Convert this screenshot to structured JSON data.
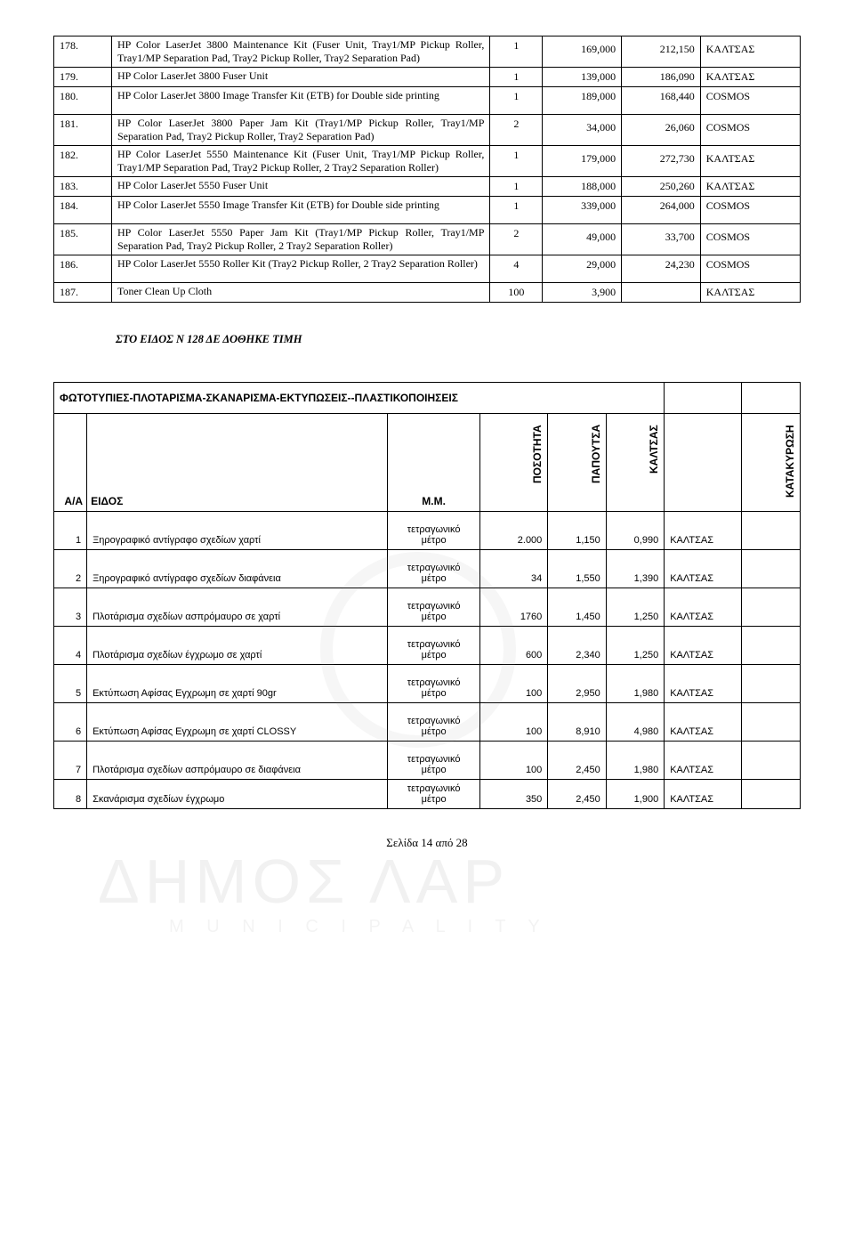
{
  "table1": {
    "rows": [
      {
        "n": "178.",
        "desc": "HP Color LaserJet 3800 Maintenance Kit (Fuser Unit, Tray1/MP Pickup Roller, Tray1/MP Separation Pad, Tray2 Pickup Roller, Tray2 Separation Pad)",
        "qty": "1",
        "v1": "169,000",
        "v2": "212,150",
        "who": "ΚΑΛΤΣΑΣ"
      },
      {
        "n": "179.",
        "desc": "HP Color LaserJet 3800 Fuser Unit",
        "qty": "1",
        "v1": "139,000",
        "v2": "186,090",
        "who": "ΚΑΛΤΣΑΣ"
      },
      {
        "n": "180.",
        "desc": "HP Color LaserJet 3800 Image Transfer Kit (ETB) for Double side printing",
        "qty": "1",
        "v1": "189,000",
        "v2": "168,440",
        "who": "COSMOS"
      },
      {
        "n": "181.",
        "desc": "HP Color LaserJet 3800 Paper Jam Kit (Tray1/MP Pickup Roller, Tray1/MP Separation Pad, Tray2 Pickup Roller, Tray2 Separation Pad)",
        "qty": "2",
        "v1": "34,000",
        "v2": "26,060",
        "who": "COSMOS"
      },
      {
        "n": "182.",
        "desc": "HP Color LaserJet 5550 Maintenance Kit (Fuser Unit, Tray1/MP Pickup Roller, Tray1/MP Separation Pad, Tray2 Pickup Roller, 2 Tray2 Separation Roller)",
        "qty": "1",
        "v1": "179,000",
        "v2": "272,730",
        "who": "ΚΑΛΤΣΑΣ"
      },
      {
        "n": "183.",
        "desc": "HP Color LaserJet 5550 Fuser Unit",
        "qty": "1",
        "v1": "188,000",
        "v2": "250,260",
        "who": "ΚΑΛΤΣΑΣ"
      },
      {
        "n": "184.",
        "desc": "HP Color LaserJet 5550 Image Transfer Kit (ETB) for Double side printing",
        "qty": "1",
        "v1": "339,000",
        "v2": "264,000",
        "who": "COSMOS"
      },
      {
        "n": "185.",
        "desc": "HP Color LaserJet 5550 Paper Jam Kit (Tray1/MP Pickup Roller, Tray1/MP Separation Pad, Tray2 Pickup Roller, 2 Tray2 Separation Roller)",
        "qty": "2",
        "v1": "49,000",
        "v2": "33,700",
        "who": "COSMOS"
      },
      {
        "n": "186.",
        "desc": "HP Color LaserJet 5550 Roller Kit (Tray2 Pickup Roller, 2 Tray2 Separation Roller)",
        "qty": "4",
        "v1": "29,000",
        "v2": "24,230",
        "who": "COSMOS"
      },
      {
        "n": "187.",
        "desc": "Toner Clean Up Cloth",
        "qty": "100",
        "v1": "3,900",
        "v2": "",
        "who": "ΚΑΛΤΣΑΣ"
      }
    ]
  },
  "note_text": "ΣΤΟ ΕΙΔΟΣ Ν 128 ΔΕ ΔΟΘΗΚΕ ΤΙΜΗ",
  "table2": {
    "title": "ΦΩΤΟΤΥΠΙΕΣ-ΠΛΟΤΑΡΙΣΜΑ-ΣΚΑΝΑΡΙΣΜΑ-ΕΚΤΥΠΩΣΕΙΣ--ΠΛΑΣΤΙΚΟΠΟΙΗΣΕΙΣ",
    "headers": {
      "aa": "Α/Α",
      "eidos": "ΕΙΔΟΣ",
      "mm": "Μ.Μ.",
      "pos": "ΠΟΣΟΤΗΤΑ",
      "pap": "ΠΑΠΟΥΤΣΑ",
      "kal": "ΚΑΛΤΣΑΣ",
      "kat": "ΚΑΤΑΚΥΡΩΣΗ"
    },
    "unit": "τετραγωνικό μέτρο",
    "rows": [
      {
        "n": "1",
        "d": "Ξηρογραφικό αντίγραφο σχεδίων χαρτί",
        "q": "2.000",
        "p1": "1,150",
        "p2": "0,990",
        "w": "ΚΑΛΤΣΑΣ"
      },
      {
        "n": "2",
        "d": "Ξηρογραφικό αντίγραφο σχεδίων διαφάνεια",
        "q": "34",
        "p1": "1,550",
        "p2": "1,390",
        "w": "ΚΑΛΤΣΑΣ"
      },
      {
        "n": "3",
        "d": "Πλοτάρισμα σχεδίων ασπρόμαυρο σε χαρτί",
        "q": "1760",
        "p1": "1,450",
        "p2": "1,250",
        "w": "ΚΑΛΤΣΑΣ"
      },
      {
        "n": "4",
        "d": "Πλοτάρισμα σχεδίων έγχρωμο σε χαρτί",
        "q": "600",
        "p1": "2,340",
        "p2": "1,250",
        "w": "ΚΑΛΤΣΑΣ"
      },
      {
        "n": "5",
        "d": "Εκτύπωση Αφίσας Εγχρωμη σε χαρτί 90gr",
        "q": "100",
        "p1": "2,950",
        "p2": "1,980",
        "w": "ΚΑΛΤΣΑΣ"
      },
      {
        "n": "6",
        "d": "Εκτύπωση Αφίσας Εγχρωμη σε χαρτί CLOSSY",
        "q": "100",
        "p1": "8,910",
        "p2": "4,980",
        "w": "ΚΑΛΤΣΑΣ"
      },
      {
        "n": "7",
        "d": "Πλοτάρισμα σχεδίων ασπρόμαυρο σε διαφάνεια",
        "q": "100",
        "p1": "2,450",
        "p2": "1,980",
        "w": "ΚΑΛΤΣΑΣ"
      },
      {
        "n": "8",
        "d": "Σκανάρισμα σχεδίων έγχρωμο",
        "q": "350",
        "p1": "2,450",
        "p2": "1,900",
        "w": "ΚΑΛΤΣΑΣ"
      }
    ]
  },
  "footer": "Σελίδα 14 από 28",
  "watermark": {
    "main": "ΔΗΜΟΣ ΛΑΡ",
    "sub": "M U N I C I P A L I T Y"
  }
}
